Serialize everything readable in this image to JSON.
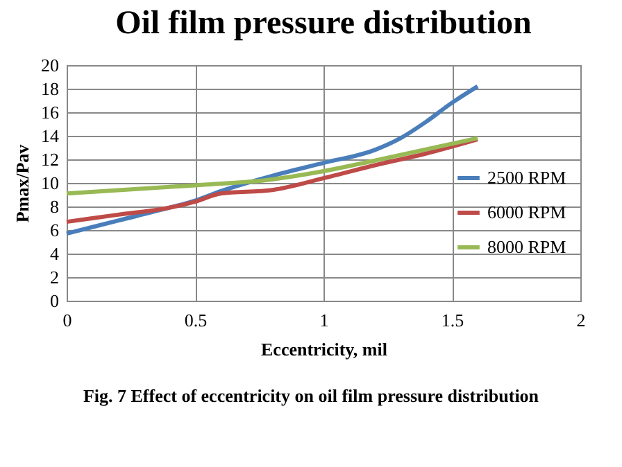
{
  "chart_data": {
    "type": "line",
    "title": "Oil film pressure distribution",
    "xlabel": "Eccentricity,  mil",
    "ylabel": "Pmax/Pav",
    "annotations": [
      "Fig. 7 Effect of eccentricity on oil film pressure distribution"
    ],
    "xlim": [
      0,
      2
    ],
    "xticks": [
      0,
      0.5,
      1,
      1.5,
      2
    ],
    "ylim": [
      0,
      20
    ],
    "yticks": [
      0,
      2,
      4,
      6,
      8,
      10,
      12,
      14,
      16,
      18,
      20
    ],
    "grid": true,
    "legend": "right",
    "series": [
      {
        "name": "2500 RPM",
        "color": "#4a7ebb",
        "x": [
          0,
          0.2,
          0.4,
          0.5,
          0.6,
          0.8,
          1.0,
          1.2,
          1.3,
          1.4,
          1.5,
          1.6
        ],
        "values": [
          5.7,
          6.8,
          7.9,
          8.5,
          9.3,
          10.6,
          11.7,
          12.8,
          13.8,
          15.2,
          16.8,
          18.2
        ]
      },
      {
        "name": "6000 RPM",
        "color": "#be4b48",
        "x": [
          0,
          0.2,
          0.4,
          0.5,
          0.6,
          0.8,
          1.0,
          1.2,
          1.4,
          1.6
        ],
        "values": [
          6.7,
          7.3,
          7.9,
          8.4,
          9.1,
          9.4,
          10.4,
          11.5,
          12.5,
          13.7
        ]
      },
      {
        "name": "8000 RPM",
        "color": "#98b954",
        "x": [
          0,
          0.5,
          0.8,
          1.0,
          1.2,
          1.6
        ],
        "values": [
          9.1,
          9.8,
          10.3,
          11.0,
          11.9,
          13.8
        ]
      }
    ]
  }
}
